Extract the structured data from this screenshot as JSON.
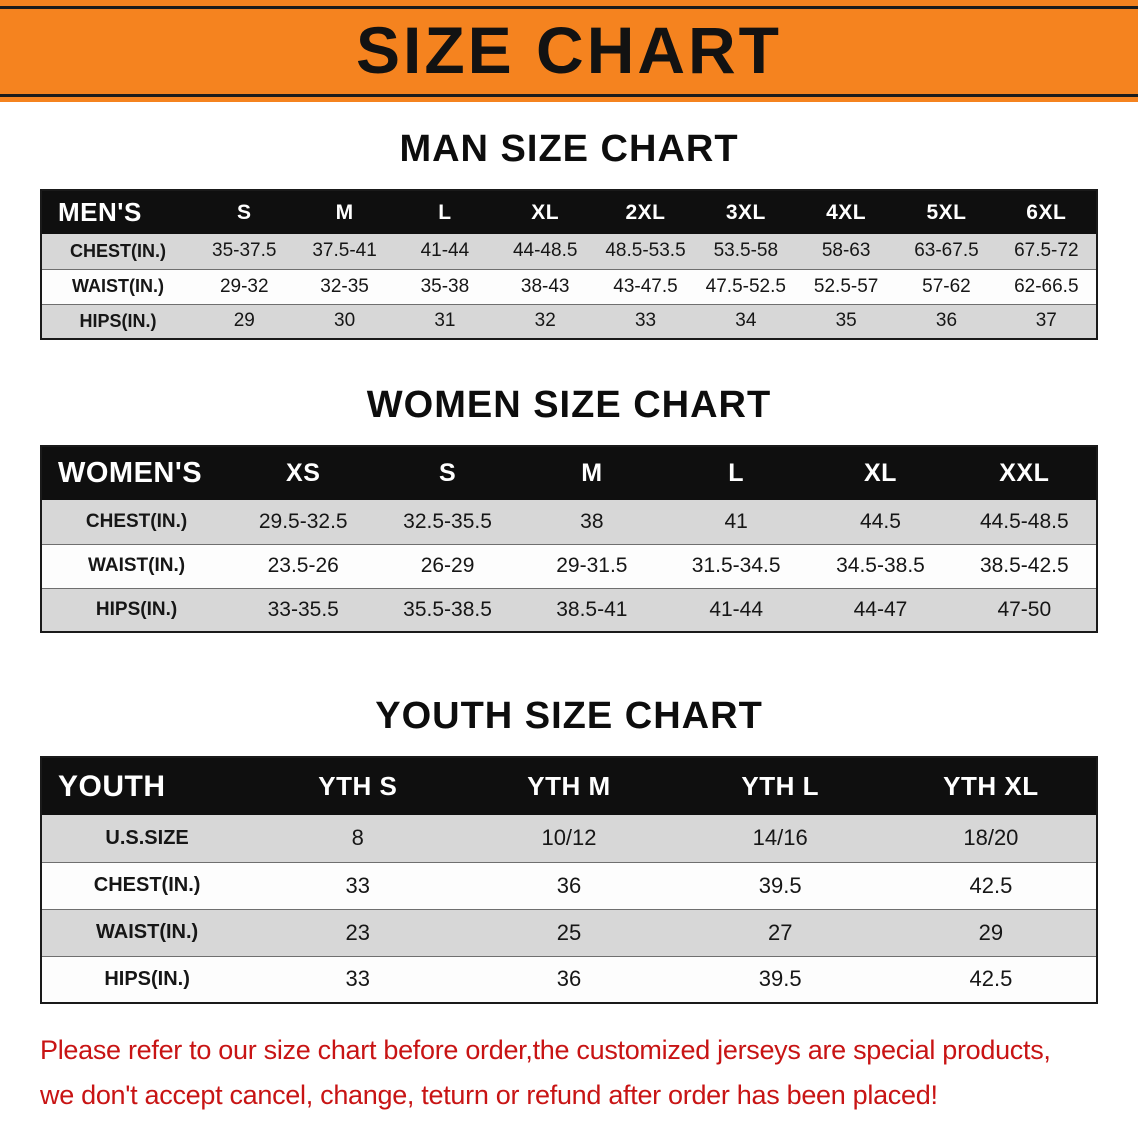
{
  "banner": {
    "title": "SIZE CHART",
    "bg_color": "#f5831f",
    "rule_color": "#1c1c1c"
  },
  "sections": [
    {
      "heading": "MAN SIZE CHART",
      "header": [
        "MEN'S",
        "S",
        "M",
        "L",
        "XL",
        "2XL",
        "3XL",
        "4XL",
        "5XL",
        "6XL"
      ],
      "rows": [
        [
          "CHEST(IN.)",
          "35-37.5",
          "37.5-41",
          "41-44",
          "44-48.5",
          "48.5-53.5",
          "53.5-58",
          "58-63",
          "63-67.5",
          "67.5-72"
        ],
        [
          "WAIST(IN.)",
          "29-32",
          "32-35",
          "35-38",
          "38-43",
          "43-47.5",
          "47.5-52.5",
          "52.5-57",
          "57-62",
          "62-66.5"
        ],
        [
          "HIPS(IN.)",
          "29",
          "30",
          "31",
          "32",
          "33",
          "34",
          "35",
          "36",
          "37"
        ]
      ]
    },
    {
      "heading": "WOMEN SIZE CHART",
      "header": [
        "WOMEN'S",
        "XS",
        "S",
        "M",
        "L",
        "XL",
        "XXL"
      ],
      "rows": [
        [
          "CHEST(IN.)",
          "29.5-32.5",
          "32.5-35.5",
          "38",
          "41",
          "44.5",
          "44.5-48.5"
        ],
        [
          "WAIST(IN.)",
          "23.5-26",
          "26-29",
          "29-31.5",
          "31.5-34.5",
          "34.5-38.5",
          "38.5-42.5"
        ],
        [
          "HIPS(IN.)",
          "33-35.5",
          "35.5-38.5",
          "38.5-41",
          "41-44",
          "44-47",
          "47-50"
        ]
      ]
    },
    {
      "heading": "YOUTH SIZE CHART",
      "header": [
        "YOUTH",
        "YTH S",
        "YTH M",
        "YTH L",
        "YTH XL"
      ],
      "rows": [
        [
          "U.S.SIZE",
          "8",
          "10/12",
          "14/16",
          "18/20"
        ],
        [
          "CHEST(IN.)",
          "33",
          "36",
          "39.5",
          "42.5"
        ],
        [
          "WAIST(IN.)",
          "23",
          "25",
          "27",
          "29"
        ],
        [
          "HIPS(IN.)",
          "33",
          "36",
          "39.5",
          "42.5"
        ]
      ]
    }
  ],
  "footer": {
    "line1": "Please refer to our size chart before order,the customized jerseys are special products,",
    "line2": "we don't accept cancel, change, teturn or refund after order has been placed!",
    "color": "#c81414"
  }
}
